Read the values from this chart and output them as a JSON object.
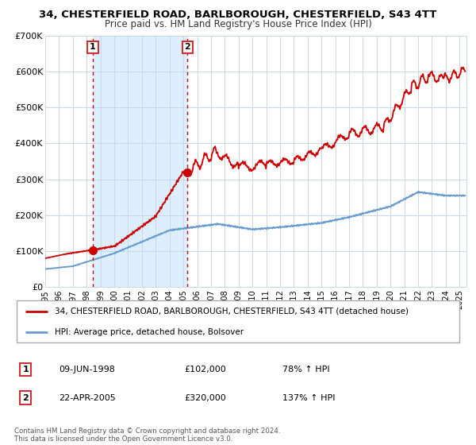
{
  "title": "34, CHESTERFIELD ROAD, BARLBOROUGH, CHESTERFIELD, S43 4TT",
  "subtitle": "Price paid vs. HM Land Registry's House Price Index (HPI)",
  "legend_line1": "34, CHESTERFIELD ROAD, BARLBOROUGH, CHESTERFIELD, S43 4TT (detached house)",
  "legend_line2": "HPI: Average price, detached house, Bolsover",
  "footnote1": "Contains HM Land Registry data © Crown copyright and database right 2024.",
  "footnote2": "This data is licensed under the Open Government Licence v3.0.",
  "red_line_color": "#cc0000",
  "blue_line_color": "#6699cc",
  "background_color": "#ffffff",
  "shading_color": "#ddeeff",
  "grid_color": "#c8d8e8",
  "annotation1": {
    "label": "1",
    "date_x": 1998.44,
    "price": 102000,
    "date_str": "09-JUN-1998",
    "price_str": "£102,000",
    "hpi_str": "78% ↑ HPI"
  },
  "annotation2": {
    "label": "2",
    "date_x": 2005.31,
    "price": 320000,
    "date_str": "22-APR-2005",
    "price_str": "£320,000",
    "hpi_str": "137% ↑ HPI"
  },
  "xmin": 1995.0,
  "xmax": 2025.5,
  "ymin": 0,
  "ymax": 700000,
  "yticks": [
    0,
    100000,
    200000,
    300000,
    400000,
    500000,
    600000,
    700000
  ],
  "ytick_labels": [
    "£0",
    "£100K",
    "£200K",
    "£300K",
    "£400K",
    "£500K",
    "£600K",
    "£700K"
  ]
}
